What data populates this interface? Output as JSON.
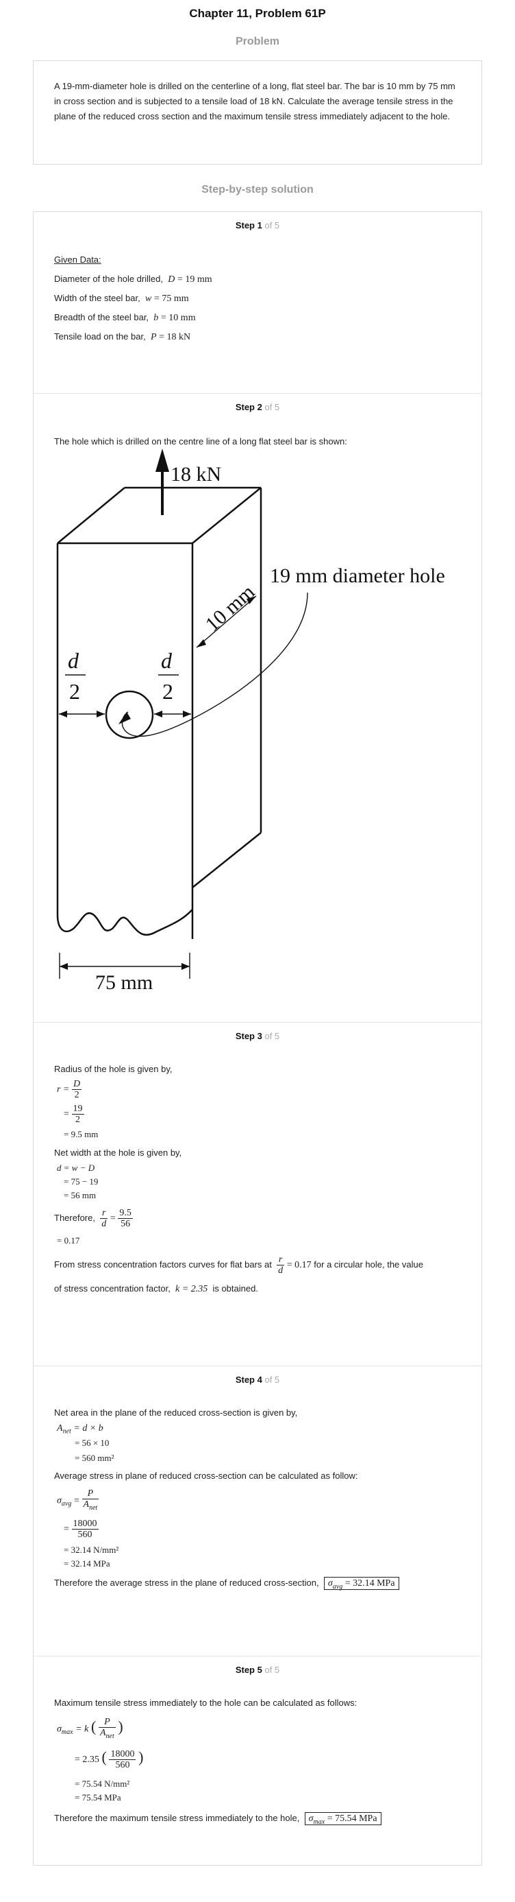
{
  "header": {
    "title": "Chapter 11, Problem 61P"
  },
  "problem": {
    "heading": "Problem",
    "text": "A 19-mm-diameter hole is drilled on the centerline of a long, flat steel bar. The bar is 10 mm by 75 mm in cross section and is subjected to a tensile load of 18 kN. Calculate the average tensile stress in the plane of the reduced cross section and the maximum tensile stress immediately adjacent to the hole."
  },
  "solution": {
    "heading": "Step-by-step solution"
  },
  "steps": [
    {
      "label": "Step 1",
      "of": "of 5",
      "given_title": "Given Data:",
      "items": [
        {
          "text": "Diameter of the hole drilled,",
          "sym": "D",
          "val": "= 19 mm"
        },
        {
          "text": "Width of the steel bar,",
          "sym": "w",
          "val": "= 75 mm"
        },
        {
          "text": "Breadth of the steel bar,",
          "sym": "b",
          "val": "= 10 mm"
        },
        {
          "text": "Tensile load on the bar,",
          "sym": "P",
          "val": "= 18 kN"
        }
      ]
    },
    {
      "label": "Step 2",
      "of": "of 5",
      "text": "The hole which is drilled on the centre line of a long flat steel bar is shown:",
      "figure": {
        "load": "18 kN",
        "thickness": "10 mm",
        "hole": "19 mm diameter hole",
        "d": "d",
        "two": "2",
        "width": "75 mm"
      }
    },
    {
      "label": "Step 3",
      "of": "of 5",
      "t1": "Radius of the hole is given by,",
      "r_lhs": "r =",
      "r_n1": "D",
      "r_d1": "2",
      "r_eq2": "=",
      "r_n2": "19",
      "r_d2": "2",
      "r_res": "= 9.5 mm",
      "t2": "Net width at the hole is given by,",
      "d_l1": "d = w − D",
      "d_l2": "= 75 − 19",
      "d_l3": "= 56 mm",
      "t3": "Therefore,",
      "ratio_n": "r",
      "ratio_d": "d",
      "ratio_eq": "=",
      "ratio_n2": "9.5",
      "ratio_d2": "56",
      "ratio_res": "= 0.17",
      "t4a": "From stress concentration factors curves for flat bars at",
      "t4_eq": "= 0.17",
      "t4b": "for a circular hole, the value",
      "t5a": "of stress concentration factor,",
      "k": "k = 2.35",
      "t5b": "is obtained."
    },
    {
      "label": "Step 4",
      "of": "of 5",
      "t1": "Net area in the plane of the reduced cross-section is given by,",
      "a_l1": "= d × b",
      "a_l2": "= 56 × 10",
      "a_l3": "= 560 mm²",
      "t2": "Average stress in plane of reduced cross-section can be calculated as follow:",
      "s_n": "P",
      "s_d": "A",
      "s_n2": "18000",
      "s_d2": "560",
      "s_l3": "= 32.14 N/mm²",
      "s_l4": "= 32.14 MPa",
      "t3": "Therefore the average stress in the plane of reduced cross-section,",
      "ans": "= 32.14 MPa"
    },
    {
      "label": "Step 5",
      "of": "of 5",
      "t1": "Maximum tensile stress immediately to the hole can be calculated as follows:",
      "m_l1": "= k",
      "m_l2": "= 2.35",
      "m_n2": "18000",
      "m_d2": "560",
      "m_l3": "= 75.54 N/mm²",
      "m_l4": "= 75.54 MPa",
      "t2": "Therefore the maximum tensile stress immediately to the hole,",
      "ans": "= 75.54 MPa"
    }
  ],
  "sub": {
    "avg": "avg",
    "net": "net",
    "max": "max"
  }
}
